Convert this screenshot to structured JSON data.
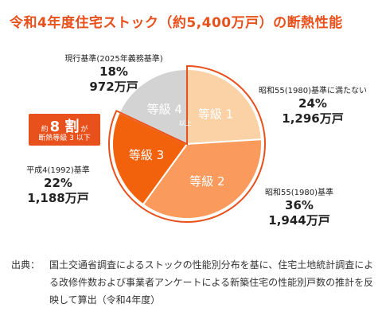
{
  "title": "令和4年度住宅ストック（約5,400万戸）の断熱性能",
  "chart_data": {
    "type": "pie",
    "title": "令和4年度住宅ストック（約5,400万戸）の断熱性能",
    "slices": [
      {
        "name": "等級 1",
        "grade_label": "等級 1",
        "sub_label": "",
        "category": "昭和55(1980)基準に満たない",
        "percent": 24,
        "percent_text": "24%",
        "count_text": "1,296万戸",
        "color": "#fbd1a6"
      },
      {
        "name": "等級 2",
        "grade_label": "等級 2",
        "sub_label": "",
        "category": "昭和55(1980)基準",
        "percent": 36,
        "percent_text": "36%",
        "count_text": "1,944万戸",
        "color": "#fa9a5c"
      },
      {
        "name": "等級 3",
        "grade_label": "等級 3",
        "sub_label": "",
        "category": "平成4(1992)基準",
        "percent": 22,
        "percent_text": "22%",
        "count_text": "1,188万戸",
        "color": "#f2620c"
      },
      {
        "name": "等級 4",
        "grade_label": "等級 4",
        "sub_label": "以上",
        "category": "現行基準(2025年義務基準)",
        "percent": 18,
        "percent_text": "18%",
        "count_text": "972万戸",
        "color": "#d3d3d3"
      }
    ]
  },
  "callout": {
    "prefix": "約",
    "big": "8 割",
    "suffix": "が",
    "sub": "断熱等級 3 以下",
    "color": "#e8501c"
  },
  "source": {
    "head": "出典：",
    "body": "国土交通省調査によるストックの性能別分布を基に、住宅土地統計調査による改修件数および事業者アンケートによる新築住宅の性能別戸数の推計を反映して算出（令和4年度）"
  }
}
